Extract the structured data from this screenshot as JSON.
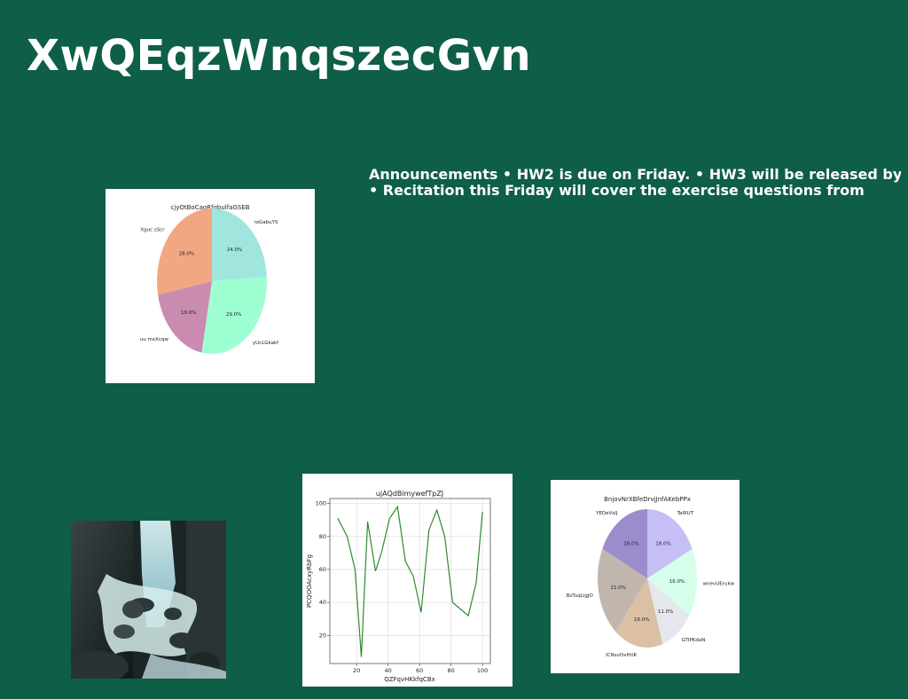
{
  "page": {
    "title": "XwQEqzWnqszecGvn",
    "announcements": {
      "line1": "Announcements • HW2 is due on Friday. • HW3 will be released by",
      "line2": "• Recitation this Friday will cover the exercise questions from"
    },
    "photo_icon": "waterfall-rocks-photo"
  },
  "chart_data": [
    {
      "type": "pie",
      "title": "cjyOtBoCaoRfqbulfaGSEB",
      "labels": [
        "roGabuYS",
        "yUcLGkakf",
        "uu mxXcqw",
        "Xguc sScr"
      ],
      "values": [
        24.0,
        29.0,
        19.0,
        28.0
      ],
      "value_labels": [
        "24.0%",
        "29.0%",
        "19.0%",
        "28.0%"
      ],
      "colors": [
        "#a0e6de",
        "#9effd2",
        "#c98bb0",
        "#f2a783"
      ]
    },
    {
      "type": "line",
      "title": "ujAQdBimywefTpZJ",
      "xlabel": "QZFqvHKkfqCBx",
      "ylabel": "PCQOOAcxyRbFg",
      "x": [
        8,
        14,
        19,
        23,
        27,
        32,
        36,
        41,
        46,
        51,
        56,
        61,
        66,
        71,
        76,
        81,
        86,
        91,
        96,
        100
      ],
      "y": [
        91,
        80,
        60,
        7,
        89,
        59,
        71,
        91,
        98,
        65,
        56,
        34,
        84,
        96,
        80,
        40,
        36,
        32,
        52,
        95
      ],
      "xlim": [
        3,
        105
      ],
      "ylim": [
        3,
        103
      ],
      "xticks": [
        "20",
        "40",
        "60",
        "80",
        "100"
      ],
      "yticks": [
        "20",
        "40",
        "60",
        "80",
        "100"
      ],
      "color": "#2e8b2e",
      "grid": true
    },
    {
      "type": "pie",
      "title": "BnjovNrXBfeDrvjJnfAKebPPx",
      "labels": [
        "TalRUT",
        "wnevUErukw",
        "GTIPKdaN",
        "ICNsvOxHUK",
        "BsTuqLlgJO",
        "YEDeVsIJ"
      ],
      "values": [
        18.0,
        16.0,
        11.0,
        16.0,
        21.0,
        18.0
      ],
      "value_labels": [
        "18.0%",
        "16.0%",
        "11.0%",
        "16.0%",
        "21.0%",
        "18.0%"
      ],
      "colors": [
        "#c5bff5",
        "#d5ffea",
        "#e6e6ee",
        "#dcc0a6",
        "#c0b6ad",
        "#9b8dcb"
      ]
    }
  ]
}
